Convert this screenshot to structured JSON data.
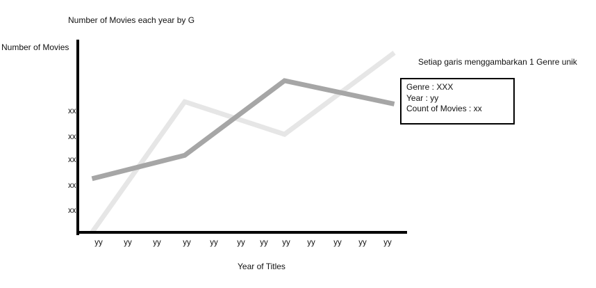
{
  "chart_data": {
    "type": "line",
    "title": "Number of Movies each year by G",
    "xlabel": "Year of Titles",
    "ylabel": "Number of Movies",
    "x_ticks": [
      "yy",
      "yy",
      "yy",
      "yy",
      "yy",
      "yy",
      "yy",
      "yy",
      "yy",
      "yy",
      "yy",
      "yy"
    ],
    "y_ticks": [
      "xx",
      "xx",
      "xx",
      "xx",
      "xx"
    ],
    "series": [
      {
        "color": "#e6e6e6",
        "x": [
          0,
          3.25,
          6.75,
          10.6
        ],
        "y": [
          0,
          5.6,
          4.2,
          7.7
        ]
      },
      {
        "color": "#a6a6a6",
        "x": [
          0,
          3.25,
          6.75,
          10.6
        ],
        "y": [
          2.3,
          3.3,
          6.5,
          5.5
        ]
      }
    ],
    "xlim": [
      -0.5,
      11
    ],
    "ylim": [
      0,
      8.2
    ],
    "grid": false,
    "annotation": "Setiap garis menggambarkan 1 Genre unik",
    "tooltip": {
      "lines": [
        "Genre : XXX",
        "Year : yy",
        "Count of Movies : xx"
      ]
    }
  }
}
